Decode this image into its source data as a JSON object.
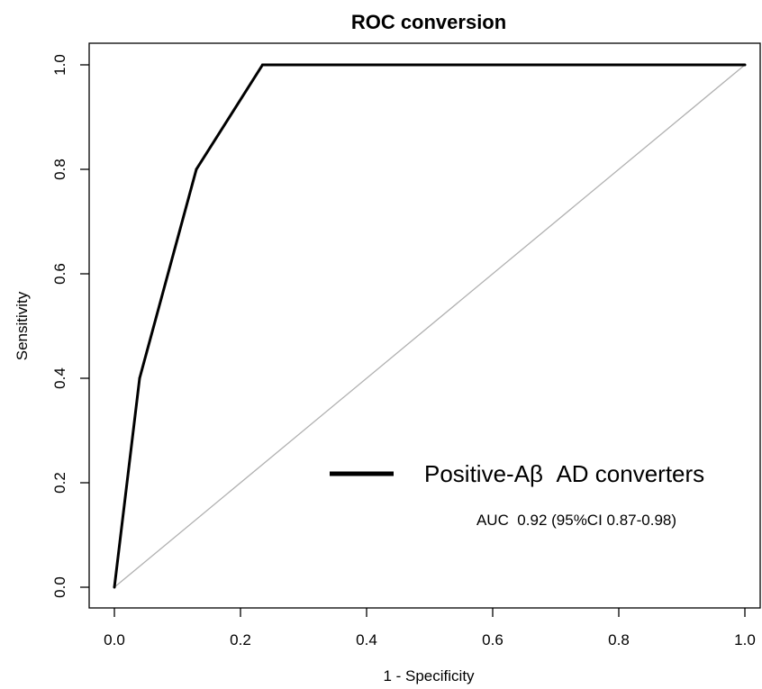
{
  "chart_data": {
    "type": "line",
    "title": "ROC conversion",
    "xlabel": "1 - Specificity",
    "ylabel": "Sensitivity",
    "xlim": [
      0.0,
      1.0
    ],
    "ylim": [
      0.0,
      1.0
    ],
    "x_ticks": [
      "0.0",
      "0.2",
      "0.4",
      "0.6",
      "0.8",
      "1.0"
    ],
    "y_ticks": [
      "0.0",
      "0.2",
      "0.4",
      "0.6",
      "0.8",
      "1.0"
    ],
    "grid": false,
    "legend_position": "lower-right",
    "series": [
      {
        "name": "Positive-Aβ  AD converters",
        "color": "#000000",
        "x": [
          0.0,
          0.04,
          0.13,
          0.235,
          1.0
        ],
        "y": [
          0.0,
          0.4,
          0.8,
          1.0,
          1.0
        ]
      }
    ],
    "reference_line": {
      "color": "#b0b0b0",
      "x": [
        0.0,
        1.0
      ],
      "y": [
        0.0,
        1.0
      ]
    },
    "annotations": [
      "AUC  0.92 (95%CI 0.87-0.98)"
    ]
  }
}
